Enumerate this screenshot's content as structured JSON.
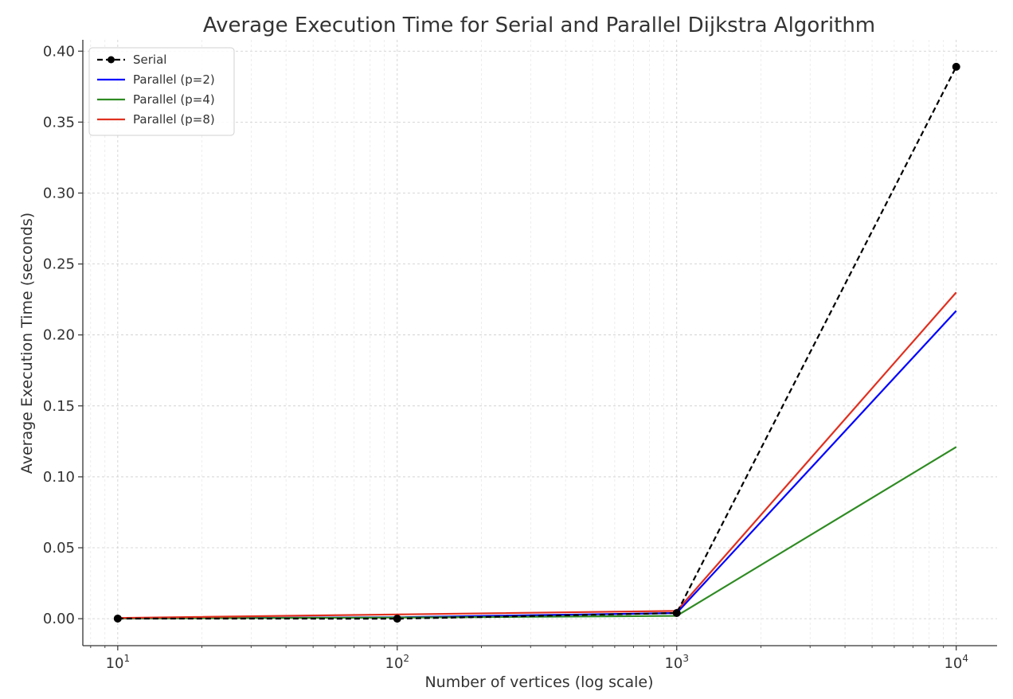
{
  "chart_data": {
    "type": "line",
    "title": "Average Execution Time for Serial and Parallel Dijkstra Algorithm",
    "xlabel": "Number of vertices (log scale)",
    "ylabel": "Average Execution Time (seconds)",
    "xscale": "log",
    "xlim": [
      7.5,
      14000
    ],
    "ylim": [
      -0.019,
      0.408
    ],
    "grid": true,
    "legend_position": "top-left",
    "x": [
      10,
      100,
      1000,
      10000
    ],
    "x_tick_labels": [
      {
        "value": 10,
        "base": "10",
        "exp": "1"
      },
      {
        "value": 100,
        "base": "10",
        "exp": "2"
      },
      {
        "value": 1000,
        "base": "10",
        "exp": "3"
      },
      {
        "value": 10000,
        "base": "10",
        "exp": "4"
      }
    ],
    "y_ticks": [
      0.0,
      0.05,
      0.1,
      0.15,
      0.2,
      0.25,
      0.3,
      0.35,
      0.4
    ],
    "y_tick_labels": [
      "0.00",
      "0.05",
      "0.10",
      "0.15",
      "0.20",
      "0.25",
      "0.30",
      "0.35",
      "0.40"
    ],
    "series": [
      {
        "name": "Serial",
        "values": [
          0.0001,
          0.0,
          0.004,
          0.389
        ],
        "color": "#000000",
        "style": "dashed",
        "marker": "circle"
      },
      {
        "name": "Parallel (p=2)",
        "values": [
          0.0002,
          0.001,
          0.004,
          0.217
        ],
        "color": "#0000ff",
        "style": "solid",
        "marker": "none"
      },
      {
        "name": "Parallel (p=4)",
        "values": [
          0.0001,
          0.0008,
          0.002,
          0.121
        ],
        "color": "#2e8b22",
        "style": "solid",
        "marker": "none"
      },
      {
        "name": "Parallel (p=8)",
        "values": [
          0.0005,
          0.003,
          0.0055,
          0.23
        ],
        "color": "#e03020",
        "style": "solid",
        "marker": "none"
      }
    ]
  }
}
